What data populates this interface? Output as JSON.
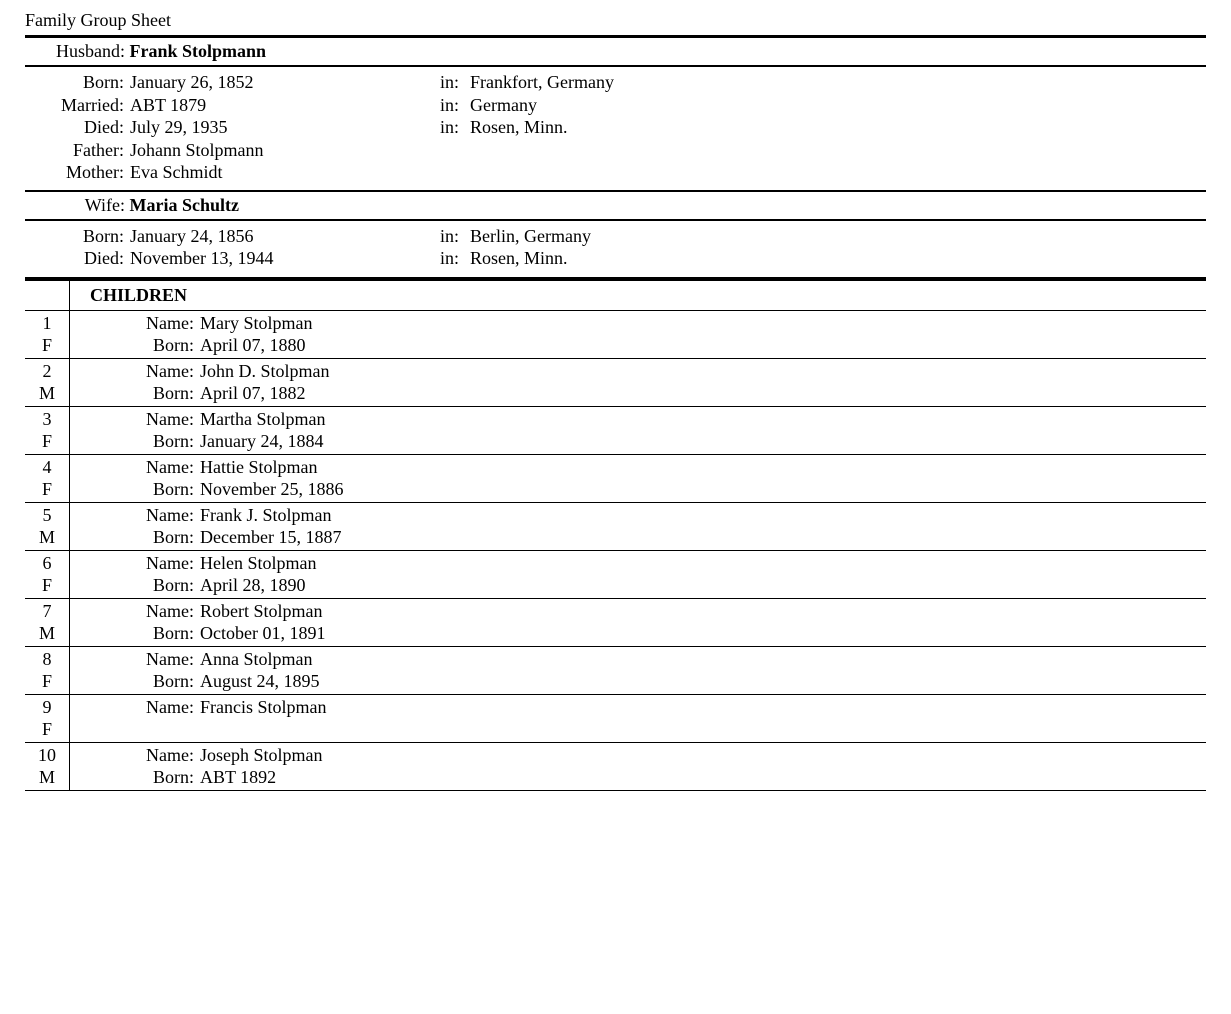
{
  "title": "Family Group Sheet",
  "husband": {
    "label": "Husband:",
    "name": "Frank Stolpmann",
    "fields": [
      {
        "label": "Born:",
        "value": "January 26, 1852",
        "in_label": "in:",
        "in_value": "Frankfort, Germany"
      },
      {
        "label": "Married:",
        "value": "ABT 1879",
        "in_label": "in:",
        "in_value": "Germany"
      },
      {
        "label": "Died:",
        "value": "July 29, 1935",
        "in_label": "in:",
        "in_value": "Rosen, Minn."
      },
      {
        "label": "Father:",
        "value": "Johann Stolpmann",
        "in_label": "",
        "in_value": ""
      },
      {
        "label": "Mother:",
        "value": "Eva Schmidt",
        "in_label": "",
        "in_value": ""
      }
    ]
  },
  "wife": {
    "label": "Wife:",
    "name": "Maria Schultz",
    "fields": [
      {
        "label": "Born:",
        "value": "January 24, 1856",
        "in_label": "in:",
        "in_value": "Berlin, Germany"
      },
      {
        "label": "Died:",
        "value": "November 13, 1944",
        "in_label": "in:",
        "in_value": "Rosen, Minn."
      }
    ]
  },
  "children_header": "CHILDREN",
  "child_labels": {
    "name": "Name:",
    "born": "Born:"
  },
  "children": [
    {
      "num": "1",
      "sex": "F",
      "name": "Mary Stolpman",
      "born": "April 07, 1880"
    },
    {
      "num": "2",
      "sex": "M",
      "name": "John D. Stolpman",
      "born": "April 07, 1882"
    },
    {
      "num": "3",
      "sex": "F",
      "name": "Martha Stolpman",
      "born": "January 24, 1884"
    },
    {
      "num": "4",
      "sex": "F",
      "name": "Hattie Stolpman",
      "born": "November 25, 1886"
    },
    {
      "num": "5",
      "sex": "M",
      "name": "Frank J. Stolpman",
      "born": "December 15, 1887"
    },
    {
      "num": "6",
      "sex": "F",
      "name": "Helen Stolpman",
      "born": "April 28, 1890"
    },
    {
      "num": "7",
      "sex": "M",
      "name": "Robert Stolpman",
      "born": "October 01, 1891"
    },
    {
      "num": "8",
      "sex": "F",
      "name": "Anna Stolpman",
      "born": "August 24, 1895"
    },
    {
      "num": "9",
      "sex": "F",
      "name": "Francis Stolpman",
      "born": ""
    },
    {
      "num": "10",
      "sex": "M",
      "name": "Joseph Stolpman",
      "born": "ABT 1892"
    }
  ]
}
